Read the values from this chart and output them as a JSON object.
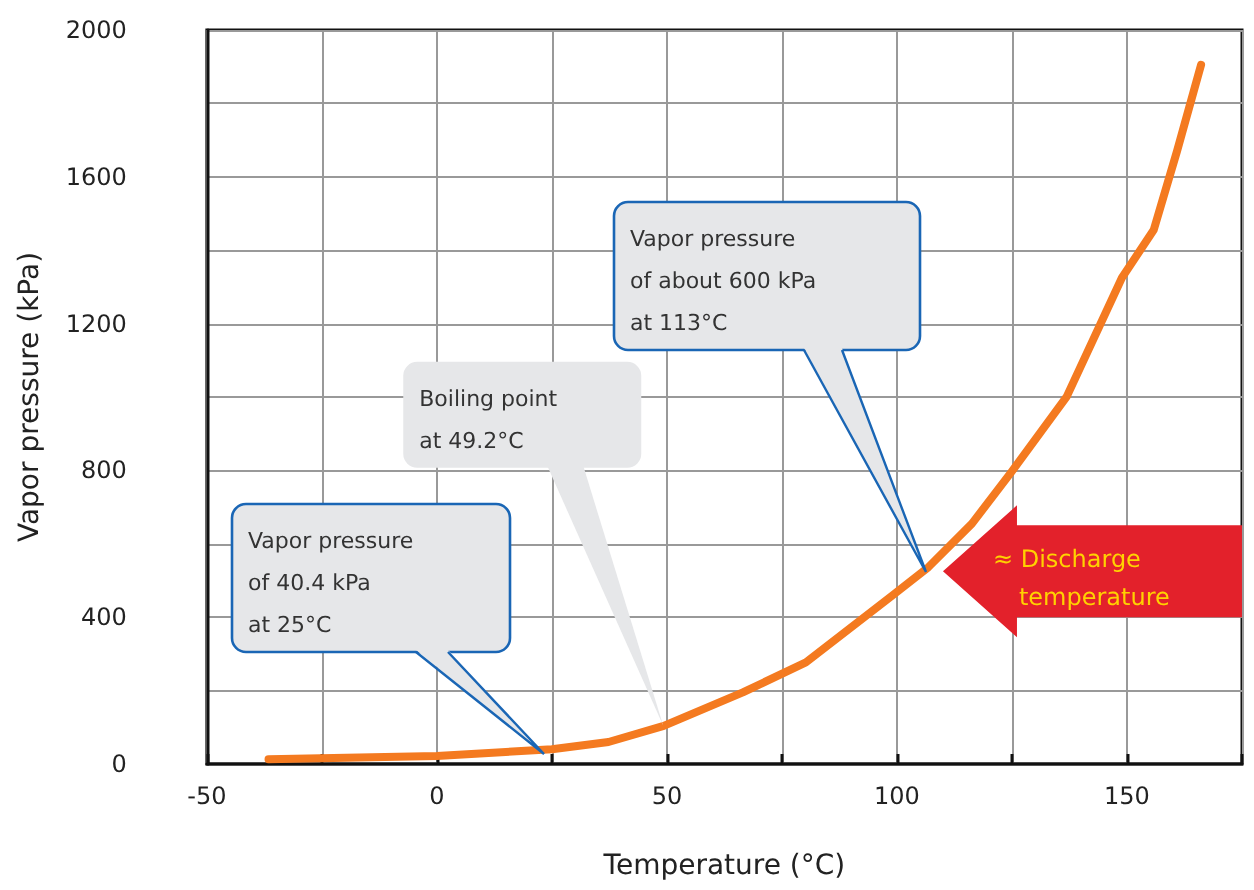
{
  "chart_data": {
    "type": "line",
    "xlabel": "Temperature (°C)",
    "ylabel": "Vapor pressure (kPa)",
    "x": [
      -36.6,
      0,
      25,
      37.3,
      49.3,
      66.5,
      80.2,
      99.1,
      106.8,
      116.3,
      124.9,
      136.9,
      148.9,
      155.8,
      160.9,
      166.1
    ],
    "series": [
      {
        "color": "#f47a20",
        "values": [
          13,
          22,
          40,
          60,
          104,
          195,
          277,
          460,
          536,
          655,
          796,
          1001,
          1325,
          1455,
          1671,
          1905
        ]
      }
    ],
    "xlim": [
      -50,
      175
    ],
    "ylim": [
      0,
      2000
    ],
    "xticks": [
      -50,
      {
        "value": -25,
        "label": null
      },
      0,
      {
        "value": 25,
        "label": null
      },
      50,
      {
        "value": 75,
        "label": null
      },
      100,
      {
        "value": 125,
        "label": null
      },
      150,
      {
        "value": 175,
        "label": null
      }
    ],
    "yticks": [
      0,
      {
        "value": 200,
        "label": null
      },
      400,
      {
        "value": 600,
        "label": null
      },
      800,
      {
        "value": 1000,
        "label": null
      },
      1200,
      {
        "value": 1400,
        "label": null
      },
      1600,
      {
        "value": 1800,
        "label": null
      },
      2000
    ],
    "grid": true,
    "annotations": [
      "Vapor pressure\nof 40.4 kPa\nat 25°C",
      {
        "text": "Boiling point\nat 49.2°C",
        "x": 49.2,
        "y": 104
      },
      "Vapor pressure\nof about 600 kPa\nat 113°C",
      {
        "text": "≈ Discharge\ntemperature",
        "x": 110,
        "y": 525
      }
    ]
  }
}
